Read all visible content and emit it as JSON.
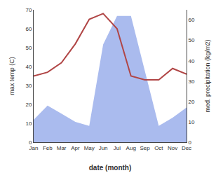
{
  "chart_data": {
    "type": "line",
    "categories": [
      "Jan",
      "Feb",
      "Mar",
      "Apr",
      "May",
      "Jun",
      "Jul",
      "Aug",
      "Sep",
      "Oct",
      "Nov",
      "Dec"
    ],
    "series": [
      {
        "type": "area",
        "axis": "y2",
        "color": "#aabbee",
        "values": [
          11,
          18,
          14,
          10,
          8,
          48,
          62,
          62,
          35,
          8,
          12,
          17
        ]
      },
      {
        "type": "line",
        "color": "#b04545",
        "values": [
          35,
          37,
          42,
          52,
          65,
          68,
          60,
          35,
          33,
          33,
          39,
          36
        ]
      }
    ],
    "xlabel": "date (month)",
    "ylabel": "max temp (C)",
    "y2label": "med. precipitation (kg/m2)",
    "ylim": [
      0,
      70
    ],
    "yticks": [
      0,
      10,
      20,
      30,
      40,
      50,
      60,
      70
    ],
    "y2lim": [
      0,
      65
    ],
    "y2ticks": [
      0,
      10,
      20,
      30,
      40,
      50,
      60
    ],
    "grid": false
  }
}
